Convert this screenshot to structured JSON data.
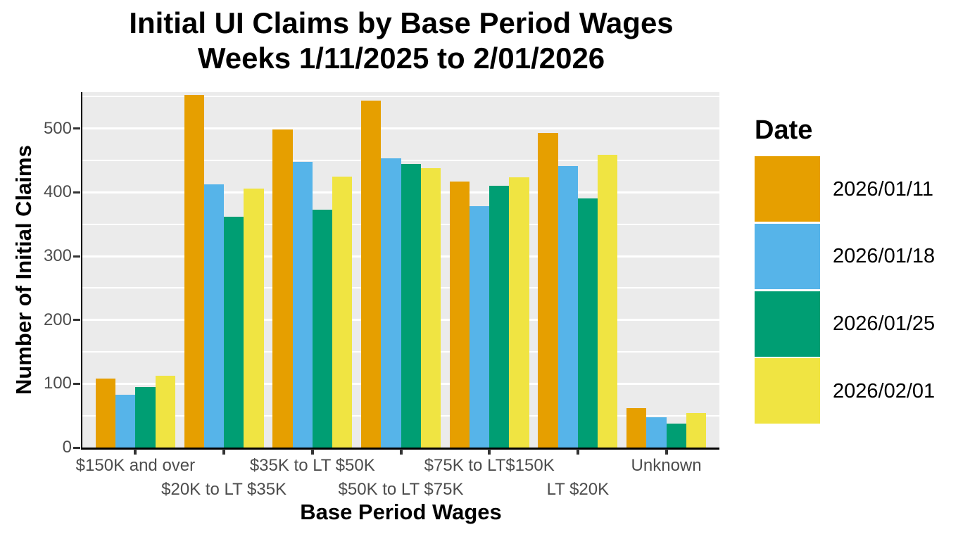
{
  "title": {
    "line1": "Initial UI Claims by Base Period Wages",
    "line2": "Weeks 1/11/2025 to 2/01/2026"
  },
  "chart_data": {
    "type": "bar",
    "title": "Initial UI Claims by Base Period Wages Weeks 1/11/2025 to 2/01/2026",
    "xlabel": "Base Period Wages",
    "ylabel": "Number of Initial Claims",
    "legend_title": "Date",
    "legend_position": "right",
    "grid": true,
    "panel_bg": "#EBEBEB",
    "grid_color": "#FFFFFF",
    "axis_color": "#000000",
    "tick_label_color": "#4D4D4D",
    "ylim": [
      0,
      557
    ],
    "yticks": [
      0,
      100,
      200,
      300,
      400,
      500
    ],
    "categories": [
      "$150K and over",
      "$20K to LT $35K",
      "$35K to LT $50K",
      "$50K to LT $75K",
      "$75K to LT$150K",
      "LT $20K",
      "Unknown"
    ],
    "series": [
      {
        "name": "2026/01/11",
        "color": "#E69F00",
        "values": [
          108,
          553,
          499,
          544,
          417,
          493,
          62
        ]
      },
      {
        "name": "2026/01/18",
        "color": "#56B4E9",
        "values": [
          83,
          412,
          448,
          453,
          378,
          441,
          47
        ]
      },
      {
        "name": "2026/01/25",
        "color": "#009E73",
        "values": [
          95,
          362,
          373,
          444,
          410,
          391,
          38
        ]
      },
      {
        "name": "2026/02/01",
        "color": "#F0E442",
        "values": [
          112,
          406,
          425,
          438,
          423,
          459,
          54
        ]
      }
    ]
  }
}
